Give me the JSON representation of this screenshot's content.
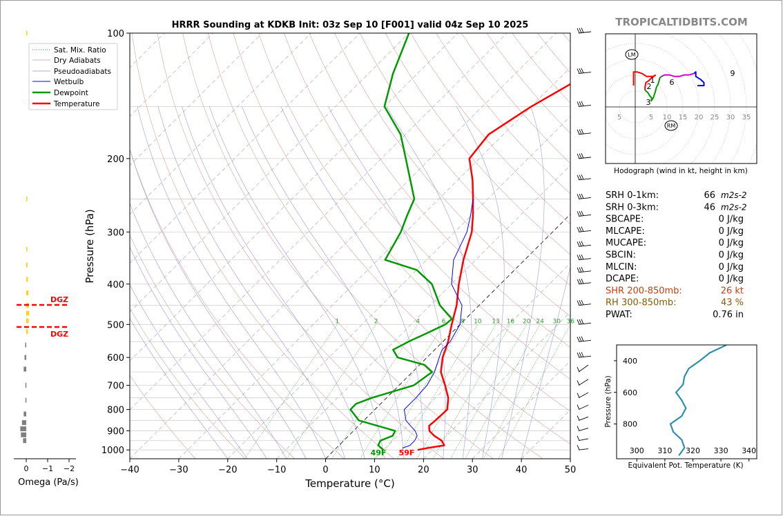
{
  "watermark": "TROPICALTIDBITS.COM",
  "colors": {
    "temperature": "#ff0000",
    "dewpoint": "#009900",
    "wetbulb": "#0000ff",
    "dgz": "#ff0000",
    "omega_pos": "#ffd21e",
    "omega_neg": "#808080",
    "theta_e": "#2d8fa8",
    "shear": "#c04010",
    "rh": "#8b5a00"
  },
  "chart_data": [
    {
      "type": "line",
      "subtype": "skew-t log-p",
      "title": "HRRR Sounding at KDKB Init: 03z Sep 10 [F001] valid 04z Sep 10 2025",
      "xlabel": "Temperature (°C)",
      "ylabel": "Pressure (hPa)",
      "xlim": [
        -40,
        50
      ],
      "ylim": [
        1050,
        100
      ],
      "y_scale": "log",
      "x_ticks": [
        "−40",
        "−30",
        "−20",
        "−10",
        "0",
        "10",
        "20",
        "30",
        "40",
        "50"
      ],
      "y_ticks": [
        "100",
        "200",
        "300",
        "400",
        "500",
        "600",
        "700",
        "800",
        "900",
        "1000"
      ],
      "legend": {
        "placement": "top-left",
        "entries": [
          "Sat. Mix. Ratio",
          "Dry Adiabats",
          "Pseudoadiabats",
          "Wetbulb",
          "Dewpoint",
          "Temperature"
        ]
      },
      "mixing_ratio_labels": [
        "1",
        "2",
        "4",
        "6",
        "8",
        "10",
        "13",
        "16",
        "20",
        "24",
        "30",
        "36"
      ],
      "surface_labels": {
        "dewpoint": "49F",
        "temperature": "59F"
      },
      "series": [
        {
          "name": "Temperature",
          "points": [
            [
              1000,
              17
            ],
            [
              990,
              18.5
            ],
            [
              975,
              21.5
            ],
            [
              950,
              20
            ],
            [
              925,
              17.5
            ],
            [
              900,
              15.5
            ],
            [
              875,
              14.4
            ],
            [
              850,
              14.6
            ],
            [
              800,
              14.8
            ],
            [
              750,
              12.6
            ],
            [
              700,
              9.4
            ],
            [
              650,
              5.8
            ],
            [
              600,
              3.2
            ],
            [
              550,
              1.1
            ],
            [
              500,
              -1.7
            ],
            [
              450,
              -4.6
            ],
            [
              400,
              -8.5
            ],
            [
              350,
              -12.5
            ],
            [
              300,
              -16.5
            ],
            [
              275,
              -19.5
            ],
            [
              250,
              -23
            ],
            [
              225,
              -27
            ],
            [
              200,
              -32
            ],
            [
              175,
              -33
            ],
            [
              150,
              -30
            ],
            [
              125,
              -25
            ],
            [
              100,
              -19
            ]
          ]
        },
        {
          "name": "Dewpoint",
          "points": [
            [
              1000,
              10
            ],
            [
              975,
              8
            ],
            [
              950,
              7.5
            ],
            [
              925,
              9
            ],
            [
              900,
              8.5
            ],
            [
              850,
              -1
            ],
            [
              800,
              -5
            ],
            [
              775,
              -5
            ],
            [
              750,
              -3
            ],
            [
              700,
              3
            ],
            [
              650,
              4
            ],
            [
              625,
              1
            ],
            [
              600,
              -6
            ],
            [
              575,
              -8.5
            ],
            [
              550,
              -7
            ],
            [
              525,
              -5
            ],
            [
              500,
              -3
            ],
            [
              485,
              -2.8
            ],
            [
              470,
              -5
            ],
            [
              450,
              -8
            ],
            [
              400,
              -14
            ],
            [
              370,
              -20
            ],
            [
              350,
              -28.5
            ],
            [
              300,
              -31
            ],
            [
              275,
              -33
            ],
            [
              250,
              -35
            ],
            [
              200,
              -45
            ],
            [
              175,
              -51
            ],
            [
              150,
              -60
            ],
            [
              125,
              -65
            ],
            [
              100,
              -70
            ]
          ]
        },
        {
          "name": "Wetbulb",
          "points": [
            [
              990,
              13.5
            ],
            [
              975,
              14.5
            ],
            [
              950,
              14.5
            ],
            [
              925,
              14
            ],
            [
              900,
              12.6
            ],
            [
              875,
              10.6
            ],
            [
              850,
              8.6
            ],
            [
              800,
              6
            ],
            [
              750,
              6
            ],
            [
              700,
              5.7
            ],
            [
              650,
              4.5
            ],
            [
              600,
              2.5
            ],
            [
              575,
              1.5
            ],
            [
              550,
              1.5
            ],
            [
              500,
              0
            ],
            [
              450,
              -3.5
            ],
            [
              400,
              -10
            ],
            [
              350,
              -14.5
            ],
            [
              300,
              -17.5
            ],
            [
              275,
              -20
            ],
            [
              250,
              -23
            ]
          ]
        }
      ]
    },
    {
      "type": "bar",
      "subtype": "omega profile",
      "xlabel": "Omega (Pa/s)",
      "x_ticks": [
        "0",
        "−1",
        "−2"
      ],
      "dgz_label": "DGZ",
      "dgz_levels_hpa": [
        452,
        507
      ]
    },
    {
      "type": "line",
      "subtype": "hodograph",
      "caption": "Hodograph (wind in kt, height in km)",
      "ring_labels": [
        "5",
        "5",
        "10",
        "15",
        "20",
        "25",
        "30",
        "35"
      ],
      "height_labels": [
        "1",
        "2",
        "3",
        "6",
        "9"
      ],
      "markers": [
        "LM",
        "RM"
      ],
      "segments": [
        {
          "range_km": "0-1",
          "color": "#ff0000",
          "points": [
            [
              -1,
              14
            ],
            [
              -1,
              23
            ],
            [
              1,
              23
            ],
            [
              4,
              22
            ],
            [
              7,
              20
            ],
            [
              9,
              20
            ],
            [
              10,
              20
            ],
            [
              11,
              20
            ],
            [
              12.5,
              21
            ]
          ]
        },
        {
          "range_km": "1-3",
          "color": "#ff0000",
          "points": [
            [
              12.5,
              21
            ],
            [
              10,
              19
            ],
            [
              8,
              17
            ],
            [
              6.5,
              16
            ],
            [
              6,
              13
            ],
            [
              6,
              11
            ]
          ]
        },
        {
          "range_km": "3-6",
          "color": "#009900",
          "points": [
            [
              6,
              11
            ],
            [
              8,
              9
            ],
            [
              9,
              7
            ],
            [
              10,
              6
            ],
            [
              9.8,
              4
            ],
            [
              11,
              6
            ],
            [
              12,
              9
            ],
            [
              12.5,
              11
            ],
            [
              13,
              13
            ],
            [
              14,
              15
            ],
            [
              14.5,
              17
            ],
            [
              15,
              19
            ],
            [
              16,
              20
            ]
          ]
        },
        {
          "range_km": "6-9",
          "color": "#cc00cc",
          "points": [
            [
              16,
              20
            ],
            [
              18,
              21
            ],
            [
              21,
              21
            ],
            [
              24,
              20
            ],
            [
              27,
              20
            ],
            [
              30,
              21
            ],
            [
              33,
              21
            ],
            [
              36,
              22
            ]
          ]
        },
        {
          "range_km": "9-12",
          "color": "#0000ff",
          "points": [
            [
              36,
              22
            ],
            [
              37,
              23
            ],
            [
              37,
              20
            ],
            [
              40,
              18
            ],
            [
              42,
              16
            ],
            [
              42,
              14
            ],
            [
              38,
              14
            ]
          ]
        }
      ]
    },
    {
      "type": "line",
      "subtype": "theta-e profile",
      "xlabel": "Equivalent Pot. Temperature (K)",
      "ylabel": "Pressure (hPa)",
      "x_ticks": [
        "300",
        "310",
        "320",
        "330",
        "340"
      ],
      "y_ticks": [
        "400",
        "600",
        "800"
      ],
      "xlim": [
        300,
        345
      ],
      "ylim": [
        1000,
        300
      ],
      "points": [
        [
          332,
          300
        ],
        [
          326,
          350
        ],
        [
          322.5,
          400
        ],
        [
          318.5,
          450
        ],
        [
          317,
          500
        ],
        [
          316.5,
          550
        ],
        [
          314,
          600
        ],
        [
          316,
          650
        ],
        [
          317.5,
          700
        ],
        [
          316,
          750
        ],
        [
          312,
          800
        ],
        [
          313,
          850
        ],
        [
          316,
          900
        ],
        [
          317,
          950
        ],
        [
          315,
          1000
        ]
      ]
    }
  ],
  "stats": [
    {
      "label": "SRH 0-1km:",
      "value": "66",
      "unit": "m2s-2",
      "color": "#000000"
    },
    {
      "label": "SRH 0-3km:",
      "value": "46",
      "unit": "m2s-2",
      "color": "#000000"
    },
    {
      "label": "SBCAPE:",
      "value": "0 J/kg",
      "color": "#000000"
    },
    {
      "label": "MLCAPE:",
      "value": "0 J/kg",
      "color": "#000000"
    },
    {
      "label": "MUCAPE:",
      "value": "0 J/kg",
      "color": "#000000"
    },
    {
      "label": "SBCIN:",
      "value": "0 J/kg",
      "color": "#000000"
    },
    {
      "label": "MLCIN:",
      "value": "0 J/kg",
      "color": "#000000"
    },
    {
      "label": "DCAPE:",
      "value": "0 J/kg",
      "color": "#000000"
    },
    {
      "label": "SHR 200-850mb:",
      "value": "26 kt",
      "color": "#c04010"
    },
    {
      "label": "RH 300-850mb:",
      "value": "43 %",
      "color": "#8b5a00"
    },
    {
      "label": "PWAT:",
      "value": "0.76 in",
      "color": "#000000"
    }
  ]
}
